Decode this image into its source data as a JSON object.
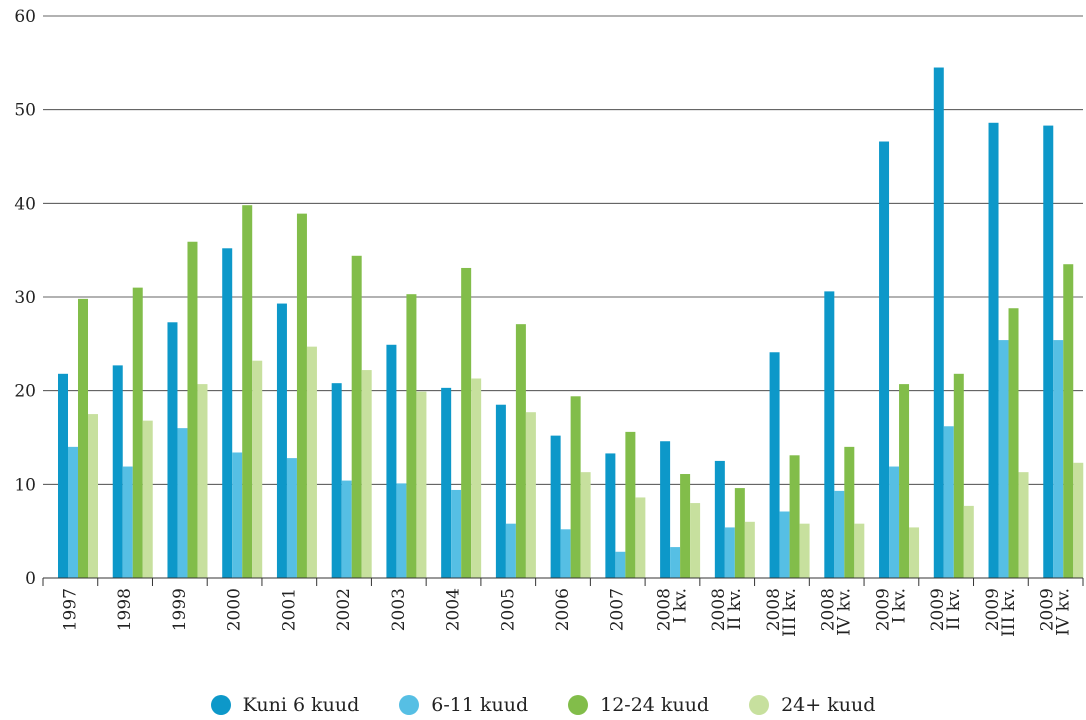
{
  "chart_data": {
    "type": "bar",
    "title": "",
    "xlabel": "",
    "ylabel": "",
    "ylim": [
      0,
      60
    ],
    "yticks": [
      0,
      10,
      20,
      30,
      40,
      50,
      60
    ],
    "grid": true,
    "legend_position": "bottom",
    "categories": [
      [
        "1997"
      ],
      [
        "1998"
      ],
      [
        "1999"
      ],
      [
        "2000"
      ],
      [
        "2001"
      ],
      [
        "2002"
      ],
      [
        "2003"
      ],
      [
        "2004"
      ],
      [
        "2005"
      ],
      [
        "2006"
      ],
      [
        "2007"
      ],
      [
        "2008",
        "I kv."
      ],
      [
        "2008",
        "II kv."
      ],
      [
        "2008",
        "III kv."
      ],
      [
        "2008",
        "IV kv."
      ],
      [
        "2009",
        "I kv."
      ],
      [
        "2009",
        "II kv."
      ],
      [
        "2009",
        "III kv."
      ],
      [
        "2009",
        "IV kv."
      ]
    ],
    "series": [
      {
        "name": "Kuni 6 kuud",
        "color": "#0d98c9",
        "values": [
          21.8,
          22.7,
          27.3,
          35.2,
          29.3,
          20.8,
          24.9,
          20.3,
          18.5,
          15.2,
          13.3,
          14.6,
          12.5,
          24.1,
          30.6,
          46.6,
          54.5,
          48.6,
          48.3
        ]
      },
      {
        "name": "6-11 kuud",
        "color": "#56bfe4",
        "values": [
          14.0,
          11.9,
          16.0,
          13.4,
          12.8,
          10.4,
          10.1,
          9.4,
          5.8,
          5.2,
          2.8,
          3.3,
          5.4,
          7.1,
          9.3,
          11.9,
          16.2,
          25.4,
          25.4
        ]
      },
      {
        "name": "12-24 kuud",
        "color": "#82bd4a",
        "values": [
          29.8,
          31.0,
          35.9,
          39.8,
          38.9,
          34.4,
          30.3,
          33.1,
          27.1,
          19.4,
          15.6,
          11.1,
          9.6,
          13.1,
          14.0,
          20.7,
          21.8,
          28.8,
          33.5
        ]
      },
      {
        "name": "24+ kuud",
        "color": "#c7e09e",
        "values": [
          17.5,
          16.8,
          20.7,
          23.2,
          24.7,
          22.2,
          19.9,
          21.3,
          17.7,
          11.3,
          8.6,
          8.0,
          6.0,
          5.8,
          5.8,
          5.4,
          7.7,
          11.3,
          12.3
        ]
      }
    ]
  }
}
